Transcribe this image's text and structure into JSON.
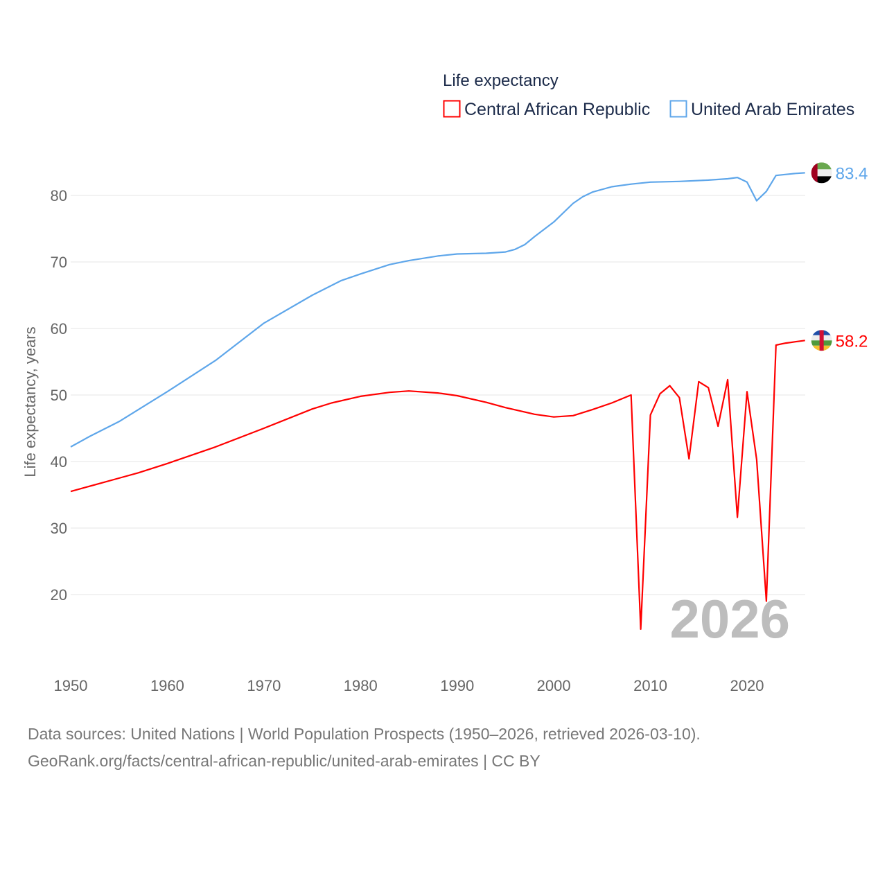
{
  "chart_data": {
    "type": "line",
    "title": "Life expectancy",
    "xlabel": "",
    "ylabel": "Life expectancy, years",
    "xlim": [
      1950,
      2026
    ],
    "ylim": [
      10,
      85
    ],
    "xticks": [
      1950,
      1960,
      1970,
      1980,
      1990,
      2000,
      2010,
      2020
    ],
    "yticks": [
      20,
      30,
      40,
      50,
      60,
      70,
      80
    ],
    "grid": true,
    "legend_position": "top-right",
    "year_watermark": "2026",
    "series": [
      {
        "name": "Central African Republic",
        "color": "#ff0000",
        "end_label": "58.2",
        "x": [
          1950,
          1955,
          1957,
          1960,
          1965,
          1970,
          1975,
          1977,
          1980,
          1983,
          1985,
          1988,
          1990,
          1993,
          1995,
          1998,
          2000,
          2002,
          2004,
          2006,
          2008,
          2009,
          2010,
          2011,
          2012,
          2013,
          2014,
          2015,
          2016,
          2017,
          2018,
          2019,
          2020,
          2021,
          2022,
          2023,
          2024,
          2025,
          2026
        ],
        "y": [
          35.5,
          37.5,
          38.3,
          39.7,
          42.2,
          45.0,
          47.9,
          48.8,
          49.8,
          50.4,
          50.6,
          50.3,
          49.9,
          48.9,
          48.1,
          47.1,
          46.7,
          46.9,
          47.8,
          48.8,
          50.0,
          14.8,
          47.0,
          50.2,
          51.4,
          49.6,
          40.4,
          52.0,
          51.1,
          45.3,
          52.3,
          31.6,
          50.5,
          40.3,
          19.0,
          57.5,
          57.8,
          58.0,
          58.2
        ]
      },
      {
        "name": "United Arab Emirates",
        "color": "#5ea6ea",
        "end_label": "83.4",
        "x": [
          1950,
          1952,
          1955,
          1960,
          1965,
          1970,
          1975,
          1978,
          1980,
          1983,
          1985,
          1988,
          1990,
          1993,
          1995,
          1996,
          1997,
          1998,
          2000,
          2002,
          2003,
          2004,
          2006,
          2008,
          2010,
          2013,
          2016,
          2018,
          2019,
          2020,
          2021,
          2022,
          2023,
          2025,
          2026
        ],
        "y": [
          42.2,
          43.8,
          46.0,
          50.5,
          55.2,
          60.8,
          65.0,
          67.2,
          68.2,
          69.6,
          70.2,
          70.9,
          71.2,
          71.3,
          71.5,
          71.9,
          72.6,
          73.8,
          76.0,
          78.8,
          79.8,
          80.5,
          81.3,
          81.7,
          82.0,
          82.1,
          82.3,
          82.5,
          82.7,
          82.0,
          79.2,
          80.6,
          83.0,
          83.3,
          83.4
        ]
      }
    ]
  },
  "footer": {
    "line1": "Data sources: United Nations | World Population Prospects (1950–2026, retrieved 2026-03-10).",
    "line2": "GeoRank.org/facts/central-african-republic/united-arab-emirates | CC BY"
  }
}
